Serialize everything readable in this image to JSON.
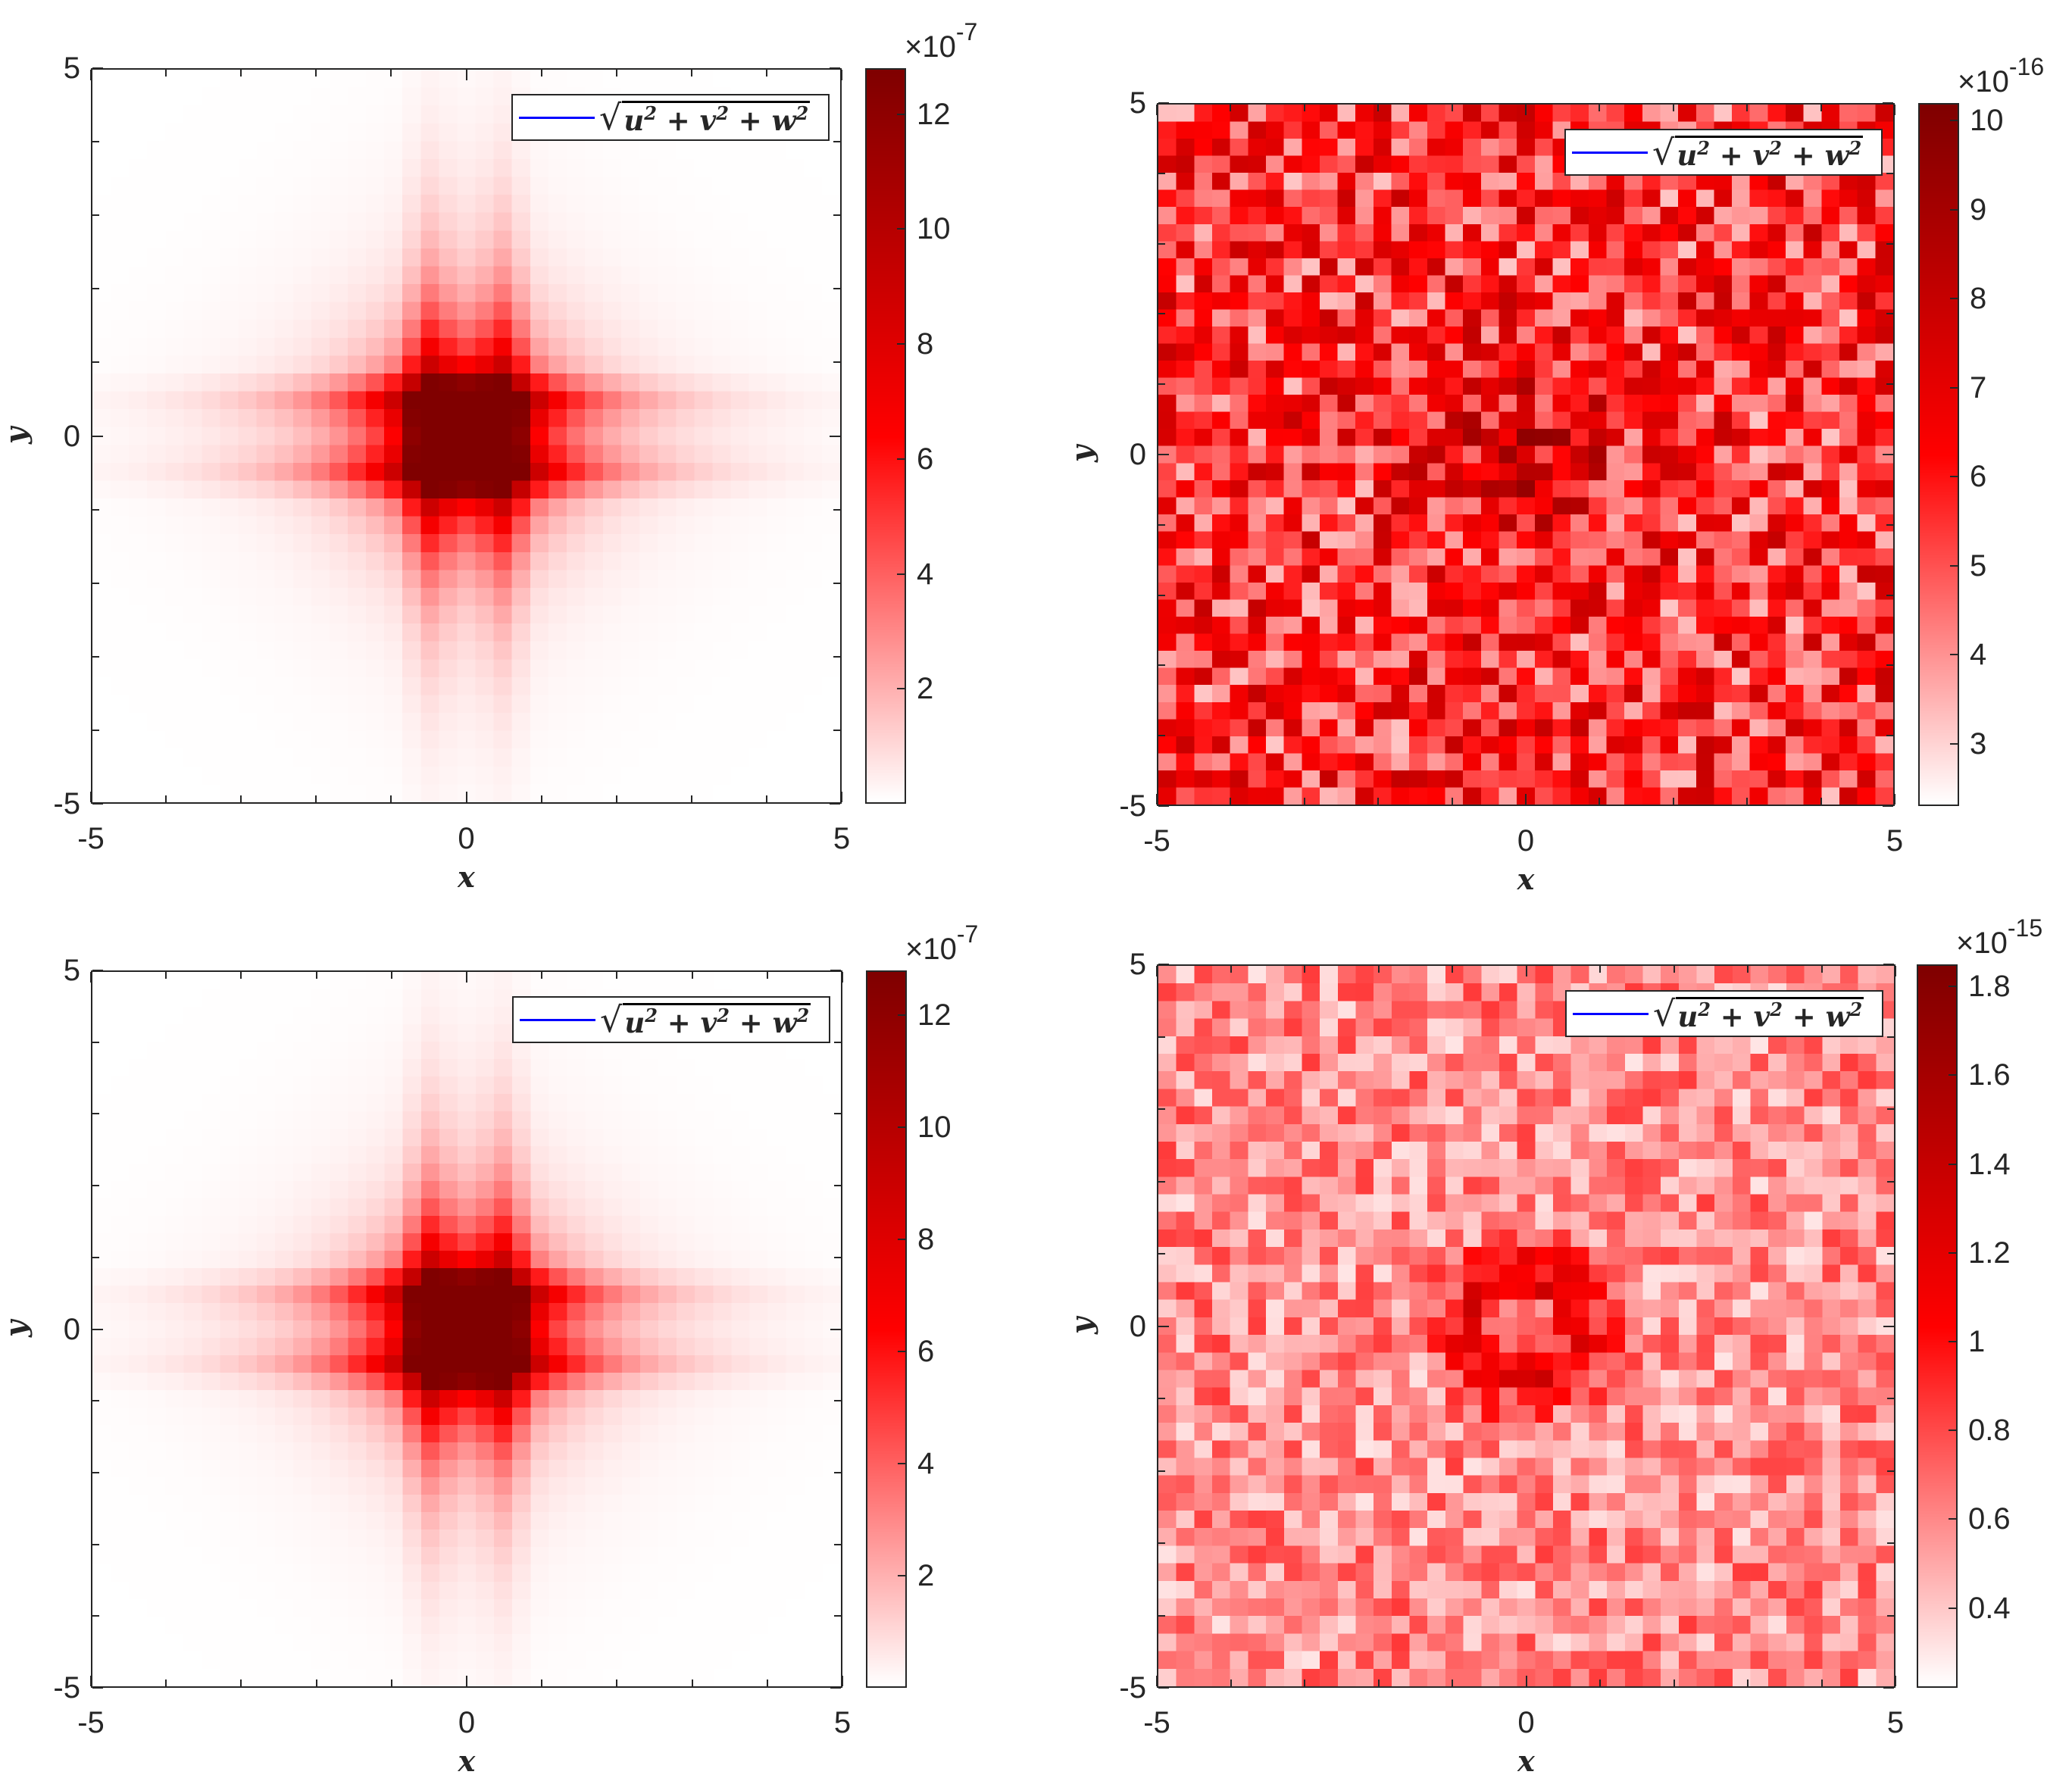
{
  "legend_symbol": "√",
  "panels": [
    {
      "id": "top-left",
      "xlabel": "x",
      "ylabel": "y",
      "xticks": [
        "-5",
        "0",
        "5"
      ],
      "yticks": [
        "5",
        "0",
        "-5"
      ],
      "legend": "u2 + v2 + w2",
      "colorbar": {
        "multiplier": "×10",
        "exponent": "-7",
        "ticks": [
          "12",
          "10",
          "8",
          "6",
          "4",
          "2"
        ]
      }
    },
    {
      "id": "top-right",
      "xlabel": "x",
      "ylabel": "y",
      "xticks": [
        "-5",
        "0",
        "5"
      ],
      "yticks": [
        "5",
        "0",
        "-5"
      ],
      "legend": "u2 + v2 + w2",
      "colorbar": {
        "multiplier": "×10",
        "exponent": "-16",
        "ticks": [
          "10",
          "9",
          "8",
          "7",
          "6",
          "5",
          "4",
          "3"
        ]
      }
    },
    {
      "id": "bottom-left",
      "xlabel": "x",
      "ylabel": "y",
      "xticks": [
        "-5",
        "0",
        "5"
      ],
      "yticks": [
        "5",
        "0",
        "-5"
      ],
      "legend": "u2 + v2 + w2",
      "colorbar": {
        "multiplier": "×10",
        "exponent": "-7",
        "ticks": [
          "12",
          "10",
          "8",
          "6",
          "4",
          "2"
        ]
      }
    },
    {
      "id": "bottom-right",
      "xlabel": "x",
      "ylabel": "y",
      "xticks": [
        "-5",
        "0",
        "5"
      ],
      "yticks": [
        "5",
        "0",
        "-5"
      ],
      "legend": "u2 + v2 + w2",
      "colorbar": {
        "multiplier": "×10",
        "exponent": "-15",
        "ticks": [
          "1.8",
          "1.6",
          "1.4",
          "1.2",
          "1",
          "0.8",
          "0.6",
          "0.4"
        ]
      }
    }
  ],
  "chart_data": [
    {
      "type": "heatmap",
      "panel": "top-left",
      "title": "",
      "xlabel": "x",
      "ylabel": "y",
      "xlim": [
        -5,
        5
      ],
      "ylim": [
        -5,
        5
      ],
      "grid_size": [
        41,
        41
      ],
      "pattern": "cross-shaped peak centred at the origin",
      "peak_locations": [
        [
          -0.5,
          0.5
        ],
        [
          0.5,
          0.5
        ],
        [
          -0.5,
          -0.5
        ],
        [
          0.5,
          -0.5
        ]
      ],
      "clim": [
        0,
        1.28e-06
      ],
      "colorbar_ticks": [
        2e-07,
        4e-07,
        6e-07,
        8e-07,
        1e-06,
        1.2e-06
      ],
      "legend": [
        "sqrt(u^2+v^2+w^2)"
      ],
      "legend_position": "top-right",
      "colormap": [
        "#ffffff",
        "#ff0000",
        "#800000"
      ]
    },
    {
      "type": "heatmap",
      "panel": "top-right",
      "title": "",
      "xlabel": "x",
      "ylabel": "y",
      "xlim": [
        -5,
        5
      ],
      "ylim": [
        -5,
        5
      ],
      "grid_size": [
        41,
        41
      ],
      "pattern": "random noise with a slightly elevated region near the origin",
      "clim": [
        2.3e-16,
        1.02e-15
      ],
      "colorbar_ticks": [
        3e-16,
        4e-16,
        5e-16,
        6e-16,
        7e-16,
        8e-16,
        9e-16,
        1e-15
      ],
      "legend": [
        "sqrt(u^2+v^2+w^2)"
      ],
      "legend_position": "top-right",
      "colormap": [
        "#ffffff",
        "#ff0000",
        "#800000"
      ]
    },
    {
      "type": "heatmap",
      "panel": "bottom-left",
      "title": "",
      "xlabel": "x",
      "ylabel": "y",
      "xlim": [
        -5,
        5
      ],
      "ylim": [
        -5,
        5
      ],
      "grid_size": [
        41,
        41
      ],
      "pattern": "cross-shaped peak centred at the origin",
      "peak_locations": [
        [
          -0.5,
          0.5
        ],
        [
          0.5,
          0.5
        ],
        [
          -0.5,
          -0.5
        ],
        [
          0.5,
          -0.5
        ]
      ],
      "clim": [
        0,
        1.28e-06
      ],
      "colorbar_ticks": [
        2e-07,
        4e-07,
        6e-07,
        8e-07,
        1e-06,
        1.2e-06
      ],
      "legend": [
        "sqrt(u^2+v^2+w^2)"
      ],
      "legend_position": "top-right",
      "colormap": [
        "#ffffff",
        "#ff0000",
        "#800000"
      ]
    },
    {
      "type": "heatmap",
      "panel": "bottom-right",
      "title": "",
      "xlabel": "x",
      "ylabel": "y",
      "xlim": [
        -5,
        5
      ],
      "ylim": [
        -5,
        5
      ],
      "grid_size": [
        41,
        41
      ],
      "pattern": "low-level noise with a concentrated peak ring near the origin",
      "clim": [
        2.2e-16,
        1.85e-15
      ],
      "colorbar_ticks": [
        4e-16,
        6e-16,
        8e-16,
        1e-15,
        1.2e-15,
        1.4e-15,
        1.6e-15,
        1.8e-15
      ],
      "legend": [
        "sqrt(u^2+v^2+w^2)"
      ],
      "legend_position": "top-right",
      "colormap": [
        "#ffffff",
        "#ff0000",
        "#800000"
      ]
    }
  ]
}
